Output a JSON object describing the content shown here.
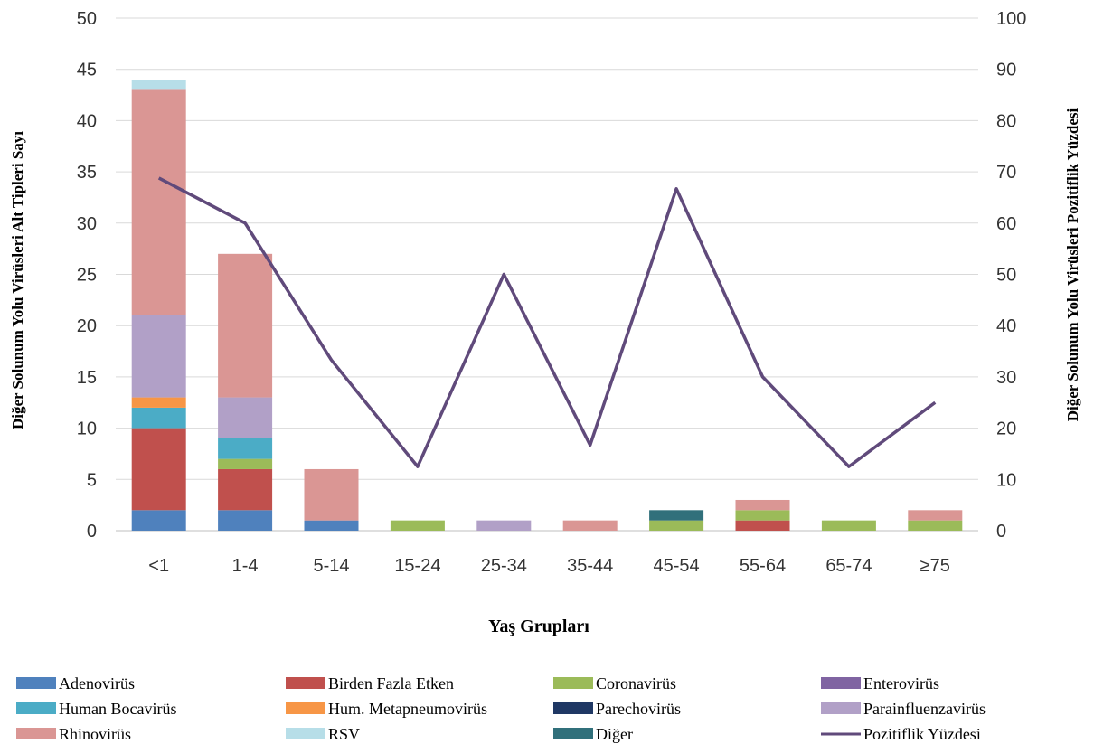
{
  "chart_data": {
    "type": "bar",
    "stacked": true,
    "categories": [
      "<1",
      "1-4",
      "5-14",
      "15-24",
      "25-34",
      "35-44",
      "45-54",
      "55-64",
      "65-74",
      "≥75"
    ],
    "xlabel": "Yaş Grupları",
    "ylabel": "Diğer Solunum Yolu Virüsleri Alt Tipleri Sayı",
    "y2label": "Diğer Solunum Yolu Virüsleri Pozitiflik  Yüzdesi",
    "ylim": [
      0,
      50
    ],
    "y2lim": [
      0,
      100
    ],
    "yticks": [
      "0",
      "5",
      "10",
      "15",
      "20",
      "25",
      "30",
      "35",
      "40",
      "45",
      "50"
    ],
    "y2ticks": [
      "0",
      "10",
      "20",
      "30",
      "40",
      "50",
      "60",
      "70",
      "80",
      "90",
      "100"
    ],
    "grid": true,
    "legend_position": "bottom",
    "series": [
      {
        "name": "Adenovirüs",
        "color": "#4F81BD",
        "values": [
          2,
          2,
          1,
          0,
          0,
          0,
          0,
          0,
          0,
          0
        ]
      },
      {
        "name": "Birden Fazla Etken",
        "color": "#C0504D",
        "values": [
          8,
          4,
          0,
          0,
          0,
          0,
          0,
          1,
          0,
          0
        ]
      },
      {
        "name": "Coronavirüs",
        "color": "#9BBB59",
        "values": [
          0,
          1,
          0,
          1,
          0,
          0,
          1,
          1,
          1,
          1
        ]
      },
      {
        "name": "Enterovirüs",
        "color": "#8064A2",
        "values": [
          0,
          0,
          0,
          0,
          0,
          0,
          0,
          0,
          0,
          0
        ]
      },
      {
        "name": "Human Bocavirüs",
        "color": "#4BACC6",
        "values": [
          2,
          2,
          0,
          0,
          0,
          0,
          0,
          0,
          0,
          0
        ]
      },
      {
        "name": "Hum. Metapneumovirüs",
        "color": "#F79646",
        "values": [
          1,
          0,
          0,
          0,
          0,
          0,
          0,
          0,
          0,
          0
        ]
      },
      {
        "name": "Parechovirüs",
        "color": "#1F3864",
        "values": [
          0,
          0,
          0,
          0,
          0,
          0,
          0,
          0,
          0,
          0
        ]
      },
      {
        "name": "Parainfluenzavirüs",
        "color": "#B1A0C7",
        "values": [
          8,
          4,
          0,
          0,
          1,
          0,
          0,
          0,
          0,
          0
        ]
      },
      {
        "name": "Rhinovirüs",
        "color": "#DA9694",
        "values": [
          22,
          14,
          5,
          0,
          0,
          1,
          0,
          1,
          0,
          1
        ]
      },
      {
        "name": "RSV",
        "color": "#B7DEE8",
        "values": [
          1,
          0,
          0,
          0,
          0,
          0,
          0,
          0,
          0,
          0
        ]
      },
      {
        "name": "Diğer",
        "color": "#31707B",
        "values": [
          0,
          0,
          0,
          0,
          0,
          0,
          1,
          0,
          0,
          0
        ]
      }
    ],
    "line": {
      "name": "Pozitiflik Yüzdesi",
      "color": "#604A7B",
      "axis": "right",
      "values": [
        68.8,
        60,
        33.3,
        12.5,
        50,
        16.7,
        66.7,
        30,
        12.5,
        25
      ]
    }
  }
}
